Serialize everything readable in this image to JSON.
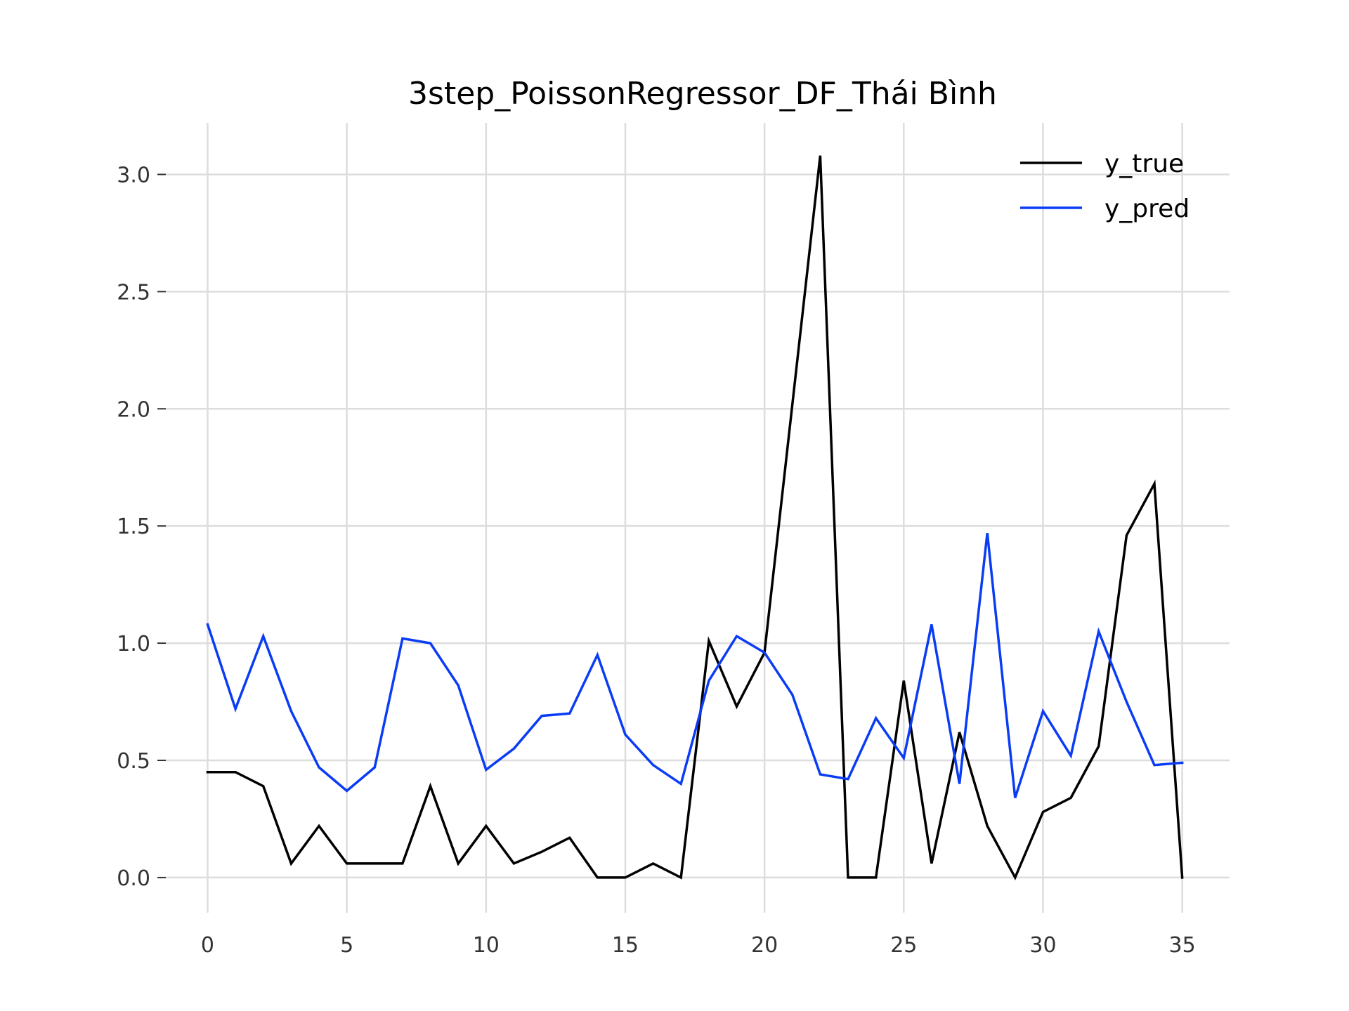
{
  "chart_data": {
    "type": "line",
    "title": "3step_PoissonRegressor_DF_Thái Bình",
    "xlabel": "",
    "ylabel": "",
    "xlim": [
      -1.5,
      36.7
    ],
    "ylim": [
      -0.15,
      3.22
    ],
    "xticks": [
      0,
      5,
      10,
      15,
      20,
      25,
      30,
      35
    ],
    "xtick_labels": [
      "0",
      "5",
      "10",
      "15",
      "20",
      "25",
      "30",
      "35"
    ],
    "yticks": [
      0.0,
      0.5,
      1.0,
      1.5,
      2.0,
      2.5,
      3.0
    ],
    "ytick_labels": [
      "0.0",
      "0.5",
      "1.0",
      "1.5",
      "2.0",
      "2.5",
      "3.0"
    ],
    "grid": true,
    "legend_position": "top-right",
    "x": [
      0,
      1,
      2,
      3,
      4,
      5,
      6,
      7,
      8,
      9,
      10,
      11,
      12,
      13,
      14,
      15,
      16,
      17,
      18,
      19,
      20,
      21,
      22,
      23,
      24,
      25,
      26,
      27,
      28,
      29,
      30,
      31,
      32,
      33,
      34,
      35
    ],
    "series": [
      {
        "name": "y_true",
        "color": "#000000",
        "values": [
          0.45,
          0.45,
          0.39,
          0.06,
          0.22,
          0.06,
          0.06,
          0.06,
          0.39,
          0.06,
          0.22,
          0.06,
          0.11,
          0.17,
          0.0,
          0.0,
          0.06,
          0.0,
          1.01,
          0.73,
          0.96,
          2.02,
          3.08,
          0.0,
          0.0,
          0.84,
          0.06,
          0.62,
          0.22,
          0.0,
          0.28,
          0.34,
          0.56,
          1.46,
          1.68,
          0.0
        ]
      },
      {
        "name": "y_pred",
        "color": "#0a3cf5",
        "values": [
          1.08,
          0.72,
          1.03,
          0.71,
          0.47,
          0.37,
          0.47,
          1.02,
          1.0,
          0.82,
          0.46,
          0.55,
          0.69,
          0.7,
          0.95,
          0.61,
          0.48,
          0.4,
          0.84,
          1.03,
          0.96,
          0.78,
          0.44,
          0.42,
          0.68,
          0.51,
          1.08,
          0.4,
          1.47,
          0.34,
          0.71,
          0.52,
          1.05,
          0.75,
          0.48,
          0.49
        ]
      }
    ]
  }
}
